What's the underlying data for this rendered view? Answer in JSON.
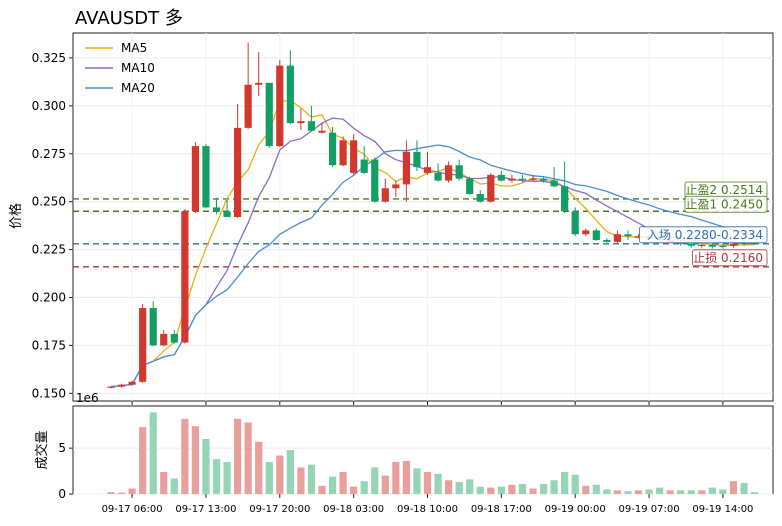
{
  "title": "AVAUSDT  多",
  "chart_data": {
    "type": "candlestick",
    "ylabel": "价格",
    "volume_ylabel": "成交量",
    "volume_offset_label": "1e6",
    "ylim": [
      0.146,
      0.338
    ],
    "yticks": [
      "0.150",
      "0.175",
      "0.200",
      "0.225",
      "0.250",
      "0.275",
      "0.300",
      "0.325"
    ],
    "volume_ylim": [
      0,
      9.6
    ],
    "volume_yticks": [
      "0",
      "5"
    ],
    "x_tick_labels": [
      "09-17 06:00",
      "09-17 13:00",
      "09-17 20:00",
      "09-18 03:00",
      "09-18 10:00",
      "09-18 17:00",
      "09-19 00:00",
      "09-19 07:00",
      "09-19 14:00"
    ],
    "x_tick_index": [
      2,
      9,
      16,
      23,
      30,
      37,
      44,
      51,
      58
    ],
    "legend": [
      "MA5",
      "MA10",
      "MA20"
    ],
    "legend_position": "upper-left",
    "colors": {
      "up": "#139f63",
      "down": "#d3382e",
      "up_vol": "#94d5b5",
      "down_vol": "#e9a09c",
      "ma5": "#e8b010",
      "ma10": "#8b6dc1",
      "ma20": "#4a8fd4"
    },
    "levels": [
      {
        "label": "止盈2 0.2514",
        "value": 0.2514,
        "color": "#4a7a1c"
      },
      {
        "label": "止盈1 0.2450",
        "value": 0.245,
        "color": "#4a7a1c"
      },
      {
        "label": "入场 0.2280-0.2334",
        "value": 0.228,
        "color": "#2e6db0"
      },
      {
        "label": "止损 0.2160",
        "value": 0.216,
        "color": "#a13c3c"
      }
    ],
    "candles": [
      [
        0.153,
        0.1535,
        0.1525,
        0.1538,
        "down",
        0.2
      ],
      [
        0.1535,
        0.1545,
        0.153,
        0.155,
        "down",
        0.15
      ],
      [
        0.1545,
        0.156,
        0.154,
        0.1565,
        "down",
        0.6
      ],
      [
        0.156,
        0.1945,
        0.1555,
        0.1965,
        "down",
        7.3
      ],
      [
        0.1945,
        0.175,
        0.1745,
        0.198,
        "up",
        8.9
      ],
      [
        0.175,
        0.181,
        0.1745,
        0.183,
        "down",
        2.4
      ],
      [
        0.181,
        0.1765,
        0.176,
        0.183,
        "up",
        1.7
      ],
      [
        0.1765,
        0.245,
        0.176,
        0.246,
        "down",
        8.2
      ],
      [
        0.245,
        0.279,
        0.244,
        0.281,
        "down",
        7.4
      ],
      [
        0.279,
        0.247,
        0.2465,
        0.28,
        "up",
        6.0
      ],
      [
        0.247,
        0.245,
        0.2435,
        0.252,
        "up",
        3.8
      ],
      [
        0.245,
        0.242,
        0.242,
        0.251,
        "up",
        3.5
      ],
      [
        0.242,
        0.2885,
        0.2415,
        0.301,
        "down",
        8.2
      ],
      [
        0.2885,
        0.311,
        0.288,
        0.333,
        "down",
        7.8
      ],
      [
        0.311,
        0.312,
        0.305,
        0.328,
        "down",
        5.7
      ],
      [
        0.312,
        0.279,
        0.278,
        0.312,
        "up",
        3.5
      ],
      [
        0.279,
        0.321,
        0.2785,
        0.324,
        "down",
        4.2
      ],
      [
        0.321,
        0.291,
        0.2905,
        0.329,
        "up",
        4.8
      ],
      [
        0.291,
        0.292,
        0.2875,
        0.2985,
        "down",
        2.9
      ],
      [
        0.292,
        0.287,
        0.2865,
        0.3,
        "up",
        3.2
      ],
      [
        0.287,
        0.286,
        0.2855,
        0.291,
        "down",
        0.9
      ],
      [
        0.286,
        0.269,
        0.268,
        0.289,
        "up",
        1.9
      ],
      [
        0.269,
        0.282,
        0.2685,
        0.284,
        "down",
        2.4
      ],
      [
        0.282,
        0.265,
        0.264,
        0.285,
        "down",
        0.8
      ],
      [
        0.265,
        0.272,
        0.2645,
        0.279,
        "up",
        1.4
      ],
      [
        0.272,
        0.25,
        0.2495,
        0.273,
        "up",
        2.9
      ],
      [
        0.25,
        0.257,
        0.2495,
        0.262,
        "down",
        2.0
      ],
      [
        0.257,
        0.259,
        0.2525,
        0.261,
        "down",
        3.5
      ],
      [
        0.259,
        0.276,
        0.25,
        0.282,
        "down",
        3.6
      ],
      [
        0.276,
        0.268,
        0.266,
        0.282,
        "up",
        2.8
      ],
      [
        0.268,
        0.265,
        0.264,
        0.276,
        "down",
        2.4
      ],
      [
        0.265,
        0.261,
        0.2605,
        0.27,
        "up",
        2.2
      ],
      [
        0.261,
        0.269,
        0.26,
        0.271,
        "down",
        1.5
      ],
      [
        0.269,
        0.262,
        0.261,
        0.272,
        "up",
        1.3
      ],
      [
        0.262,
        0.254,
        0.2535,
        0.263,
        "up",
        1.6
      ],
      [
        0.254,
        0.25,
        0.2495,
        0.256,
        "up",
        0.8
      ],
      [
        0.25,
        0.264,
        0.2495,
        0.265,
        "down",
        0.7
      ],
      [
        0.264,
        0.261,
        0.2605,
        0.266,
        "up",
        0.8
      ],
      [
        0.261,
        0.262,
        0.26,
        0.264,
        "down",
        1.0
      ],
      [
        0.262,
        0.262,
        0.26,
        0.264,
        "up",
        1.1
      ],
      [
        0.262,
        0.262,
        0.261,
        0.264,
        "down",
        0.6
      ],
      [
        0.262,
        0.261,
        0.26,
        0.263,
        "up",
        1.1
      ],
      [
        0.261,
        0.258,
        0.2575,
        0.268,
        "up",
        1.5
      ],
      [
        0.258,
        0.245,
        0.244,
        0.271,
        "up",
        2.4
      ],
      [
        0.245,
        0.233,
        0.232,
        0.247,
        "up",
        2.1
      ],
      [
        0.233,
        0.235,
        0.232,
        0.236,
        "down",
        0.9
      ],
      [
        0.235,
        0.23,
        0.2295,
        0.236,
        "up",
        1.0
      ],
      [
        0.23,
        0.229,
        0.2285,
        0.231,
        "up",
        0.5
      ],
      [
        0.229,
        0.233,
        0.228,
        0.235,
        "down",
        0.4
      ],
      [
        0.233,
        0.232,
        0.23,
        0.235,
        "up",
        0.3
      ],
      [
        0.232,
        0.232,
        0.231,
        0.233,
        "down",
        0.4
      ],
      [
        0.232,
        0.231,
        0.23,
        0.233,
        "up",
        0.5
      ],
      [
        0.231,
        0.23,
        0.229,
        0.232,
        "up",
        0.7
      ],
      [
        0.23,
        0.229,
        0.2285,
        0.231,
        "down",
        0.4
      ],
      [
        0.229,
        0.228,
        0.227,
        0.23,
        "up",
        0.4
      ],
      [
        0.228,
        0.227,
        0.226,
        0.229,
        "up",
        0.4
      ],
      [
        0.227,
        0.2275,
        0.226,
        0.2285,
        "down",
        0.4
      ],
      [
        0.2275,
        0.2265,
        0.2255,
        0.2285,
        "up",
        0.7
      ],
      [
        0.2265,
        0.227,
        0.2255,
        0.228,
        "up",
        0.5
      ],
      [
        0.227,
        0.228,
        0.226,
        0.229,
        "down",
        1.4
      ],
      [
        0.228,
        0.2285,
        0.227,
        0.23,
        "up",
        1.2
      ],
      [
        0.2285,
        0.228,
        0.2275,
        0.2295,
        "up",
        0.2
      ]
    ]
  }
}
